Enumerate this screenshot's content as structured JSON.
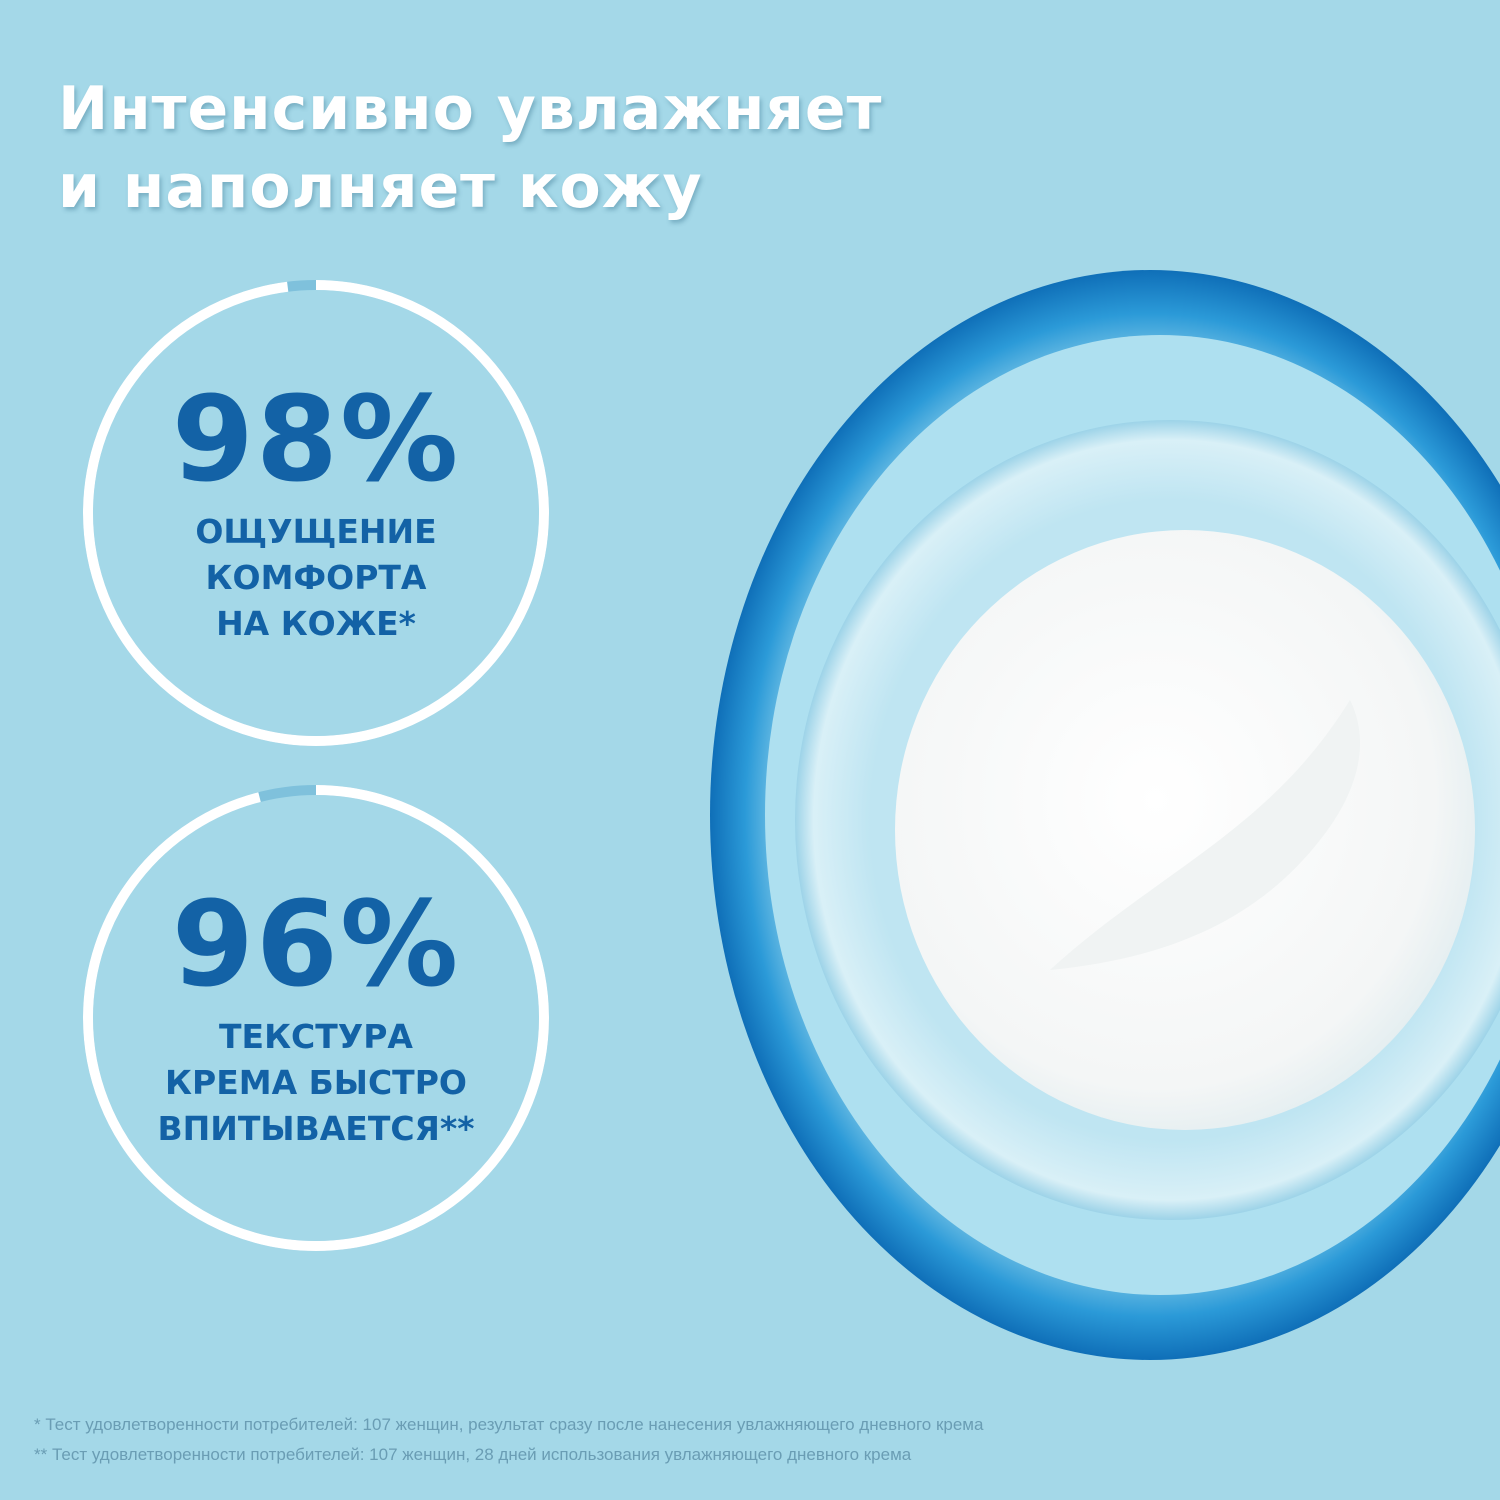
{
  "title": {
    "line1": "Интенсивно увлажняет",
    "line2": "и наполняет кожу"
  },
  "colors": {
    "background": "#a4d8e8",
    "accent": "#1362a6",
    "ring": "#ffffff",
    "ring_gap": "#7fc1dc"
  },
  "stats": [
    {
      "value": 98,
      "value_label": "98%",
      "lines": [
        "ОЩУЩЕНИЕ",
        "КОМФОРТА",
        "НА КОЖЕ*"
      ]
    },
    {
      "value": 96,
      "value_label": "96%",
      "lines": [
        "ТЕКСТУРА",
        "КРЕМА БЫСТРО",
        "ВПИТЫВАЕТСЯ**"
      ]
    }
  ],
  "footnotes": [
    "* Тест удовлетворенности потребителей: 107 женщин, результат сразу после нанесения увлажняющего дневного крема",
    "** Тест удовлетворенности потребителей: 107 женщин, 28 дней использования увлажняющего дневного крема"
  ]
}
